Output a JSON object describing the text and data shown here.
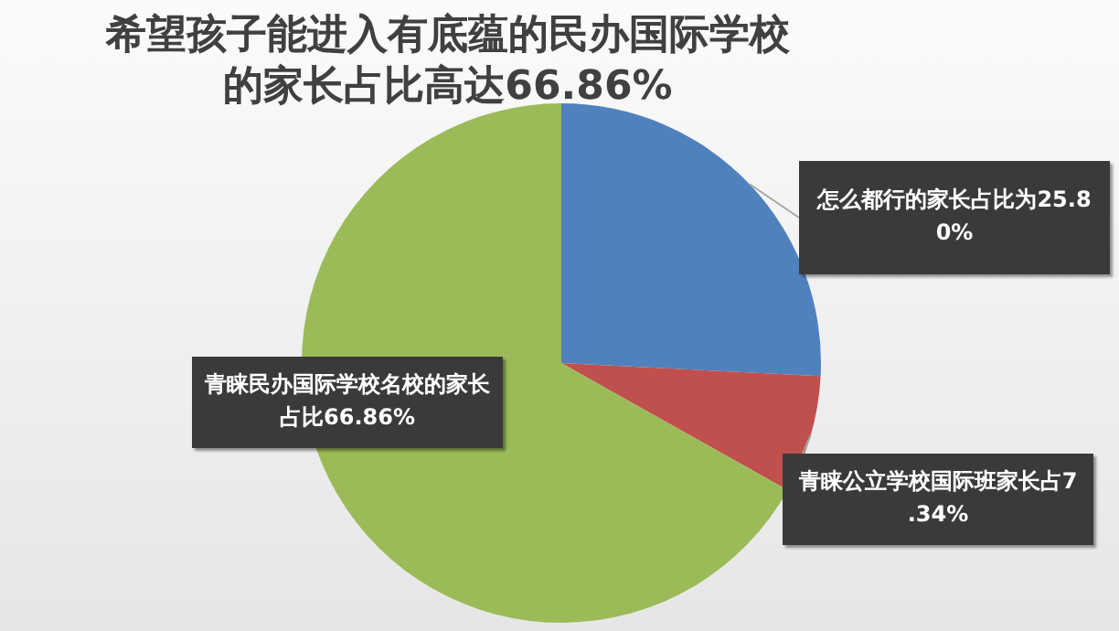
{
  "chart_data": {
    "type": "pie",
    "title": "希望孩子能进入有底蕴的民办国际学校的家长占比高达66.86%",
    "categories": [
      "怎么都行的家长占比为",
      "青睐公立学校国际班家长占",
      "青睐民办国际学校名校的家长占比"
    ],
    "values": [
      25.8,
      7.34,
      66.86
    ],
    "value_labels": [
      "25.80%",
      "7.34%",
      "66.86%"
    ],
    "colors": [
      "#4f81bd",
      "#c0504d",
      "#9bbb59"
    ],
    "legend": false
  }
}
